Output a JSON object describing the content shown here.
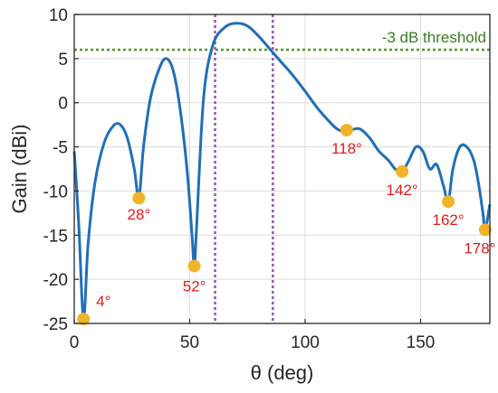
{
  "chart_data": {
    "type": "line",
    "xlabel": "θ (deg)",
    "ylabel": "Gain (dBi)",
    "xlim": [
      0,
      180
    ],
    "ylim": [
      -25,
      10
    ],
    "xticks": [
      0,
      50,
      100,
      150
    ],
    "yticks": [
      -25,
      -20,
      -15,
      -10,
      -5,
      0,
      5,
      10
    ],
    "grid": true,
    "series": [
      {
        "color": "#1f6fb8",
        "x": [
          0,
          2,
          4,
          6,
          9,
          13,
          17,
          20,
          23,
          26,
          28,
          30,
          33,
          37,
          40,
          43,
          46,
          49,
          51,
          52,
          53,
          56,
          60,
          65,
          70,
          75,
          80,
          85,
          90,
          95,
          100,
          105,
          110,
          114,
          118,
          121,
          124,
          128,
          132,
          136,
          139,
          142,
          145,
          148,
          151,
          154,
          157,
          160,
          162,
          164,
          167,
          170,
          173,
          175,
          177,
          178,
          180
        ],
        "y": [
          -5.5,
          -14,
          -24.5,
          -16,
          -9,
          -4.5,
          -2.6,
          -2.5,
          -4,
          -7.5,
          -10.8,
          -5,
          0.5,
          4,
          5,
          3.5,
          -1,
          -8,
          -15,
          -18.5,
          -14,
          0.5,
          6.5,
          8.5,
          9,
          8.7,
          7.5,
          6,
          4.5,
          3,
          1.3,
          -0.5,
          -2,
          -3,
          -3.3,
          -3,
          -3,
          -4,
          -5.5,
          -6.5,
          -7.5,
          -7.8,
          -6.5,
          -5,
          -5.5,
          -7.5,
          -7,
          -9.5,
          -11.2,
          -7.5,
          -5,
          -5,
          -6.5,
          -9,
          -12.5,
          -14.4,
          -11.5
        ]
      }
    ],
    "markers": [
      {
        "x": 4,
        "y": -24.5,
        "label": "4°"
      },
      {
        "x": 28,
        "y": -10.8,
        "label": "28°"
      },
      {
        "x": 52,
        "y": -18.5,
        "label": "52°"
      },
      {
        "x": 118,
        "y": -3.1,
        "label": "118°"
      },
      {
        "x": 142,
        "y": -7.8,
        "label": "142°"
      },
      {
        "x": 162,
        "y": -11.2,
        "label": "162°"
      },
      {
        "x": 178,
        "y": -14.4,
        "label": "178°"
      }
    ],
    "marker_color": "#f0b429",
    "annotation_color": "#e41a1c",
    "threshold": {
      "y": 6,
      "label": "-3 dB threshold",
      "color": "#5a9a2a"
    },
    "vlines": [
      {
        "x": 61,
        "color": "#9b59b6"
      },
      {
        "x": 86,
        "color": "#9b59b6"
      }
    ]
  }
}
